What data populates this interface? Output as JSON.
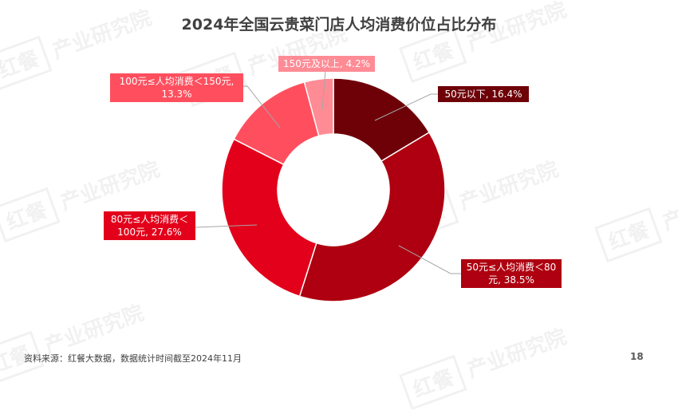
{
  "title": "2024年全国云贵菜门店人均消费价位占比分布",
  "chart_data": {
    "type": "pie",
    "subtype": "donut",
    "title": "2024年全国云贵菜门店人均消费价位占比分布",
    "categories": [
      "50元以下",
      "50元≤人均消费＜80元",
      "80元≤人均消费＜100元",
      "100元≤人均消费＜150元",
      "150元及以上"
    ],
    "values": [
      16.4,
      38.5,
      27.6,
      13.3,
      4.2
    ],
    "unit": "%",
    "colors": [
      "#6e0008",
      "#ae0010",
      "#e3001a",
      "#ff4f5e",
      "#ff8b95"
    ],
    "legend": "none (data labels with leader lines)"
  },
  "labels": [
    {
      "line1": "50元以下, 16.4%",
      "line2": ""
    },
    {
      "line1": "50元≤人均消费＜80",
      "line2": "元, 38.5%"
    },
    {
      "line1": "80元≤人均消费＜",
      "line2": "100元, 27.6%"
    },
    {
      "line1": "100元≤人均消费＜150元,",
      "line2": "13.3%"
    },
    {
      "line1": "150元及以上, 4.2%",
      "line2": ""
    }
  ],
  "watermark": {
    "brand": "红餐",
    "text": "产业研究院"
  },
  "footer": {
    "source": "资料来源：红餐大数据，数据统计时间截至2024年11月",
    "page": "18"
  }
}
